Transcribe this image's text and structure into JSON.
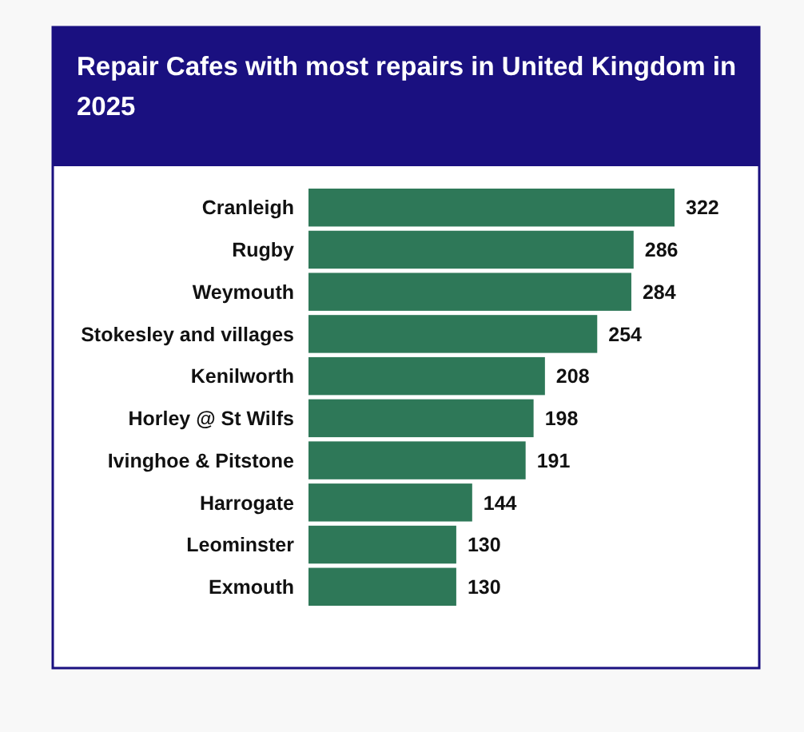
{
  "chart_data": {
    "type": "bar",
    "orientation": "horizontal",
    "title": "Repair Cafes with most repairs in United Kingdom in 2025",
    "categories": [
      "Cranleigh",
      "Rugby",
      "Weymouth",
      "Stokesley and villages",
      "Kenilworth",
      "Horley @ St Wilfs",
      "Ivinghoe & Pitstone",
      "Harrogate",
      "Leominster",
      "Exmouth"
    ],
    "values": [
      322,
      286,
      284,
      254,
      208,
      198,
      191,
      144,
      130,
      130
    ],
    "color": "#2e7858",
    "data_labels": true
  }
}
